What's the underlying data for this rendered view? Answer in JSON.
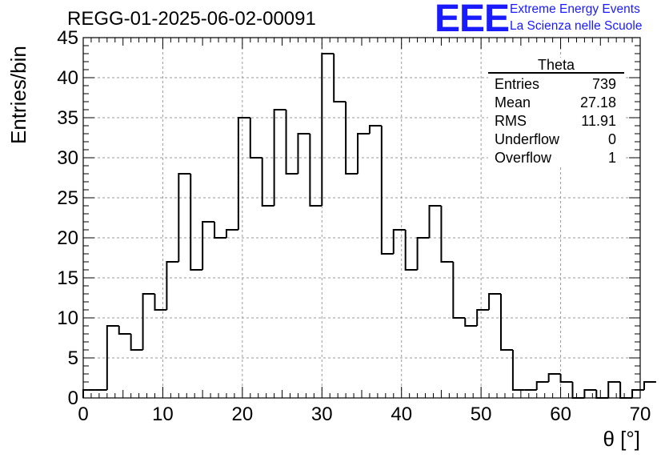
{
  "title": "REGG-01-2025-06-02-00091",
  "logo": {
    "mark": "EEE",
    "line1": "Extreme Energy Events",
    "line2": "La Scienza nelle Scuole",
    "color": "#1a1aff"
  },
  "stats_box": {
    "name": "Theta",
    "rows": [
      {
        "label": "Entries",
        "value": "739"
      },
      {
        "label": "Mean",
        "value": "27.18"
      },
      {
        "label": "RMS",
        "value": "11.91"
      },
      {
        "label": "Underflow",
        "value": "0"
      },
      {
        "label": "Overflow",
        "value": "1"
      }
    ]
  },
  "chart_data": {
    "type": "bar",
    "style": "step-histogram",
    "title": "REGG-01-2025-06-02-00091",
    "xlabel": "θ [°]",
    "ylabel": "Entries/bin",
    "xlim": [
      0,
      70
    ],
    "ylim": [
      0,
      45
    ],
    "bin_width": 1.5,
    "grid": true,
    "x_ticks": [
      "0",
      "10",
      "20",
      "30",
      "40",
      "50",
      "60",
      "70"
    ],
    "y_ticks": [
      "0",
      "5",
      "10",
      "15",
      "20",
      "25",
      "30",
      "35",
      "40",
      "45"
    ],
    "bin_edges_start": 0,
    "values": [
      1,
      1,
      9,
      8,
      6,
      13,
      11,
      17,
      28,
      16,
      22,
      20,
      21,
      35,
      30,
      24,
      36,
      28,
      33,
      24,
      43,
      37,
      28,
      33,
      34,
      18,
      21,
      16,
      20,
      24,
      17,
      10,
      9,
      11,
      13,
      6,
      1,
      1,
      2,
      3,
      2,
      0,
      1,
      0,
      2,
      0,
      1,
      2
    ]
  }
}
